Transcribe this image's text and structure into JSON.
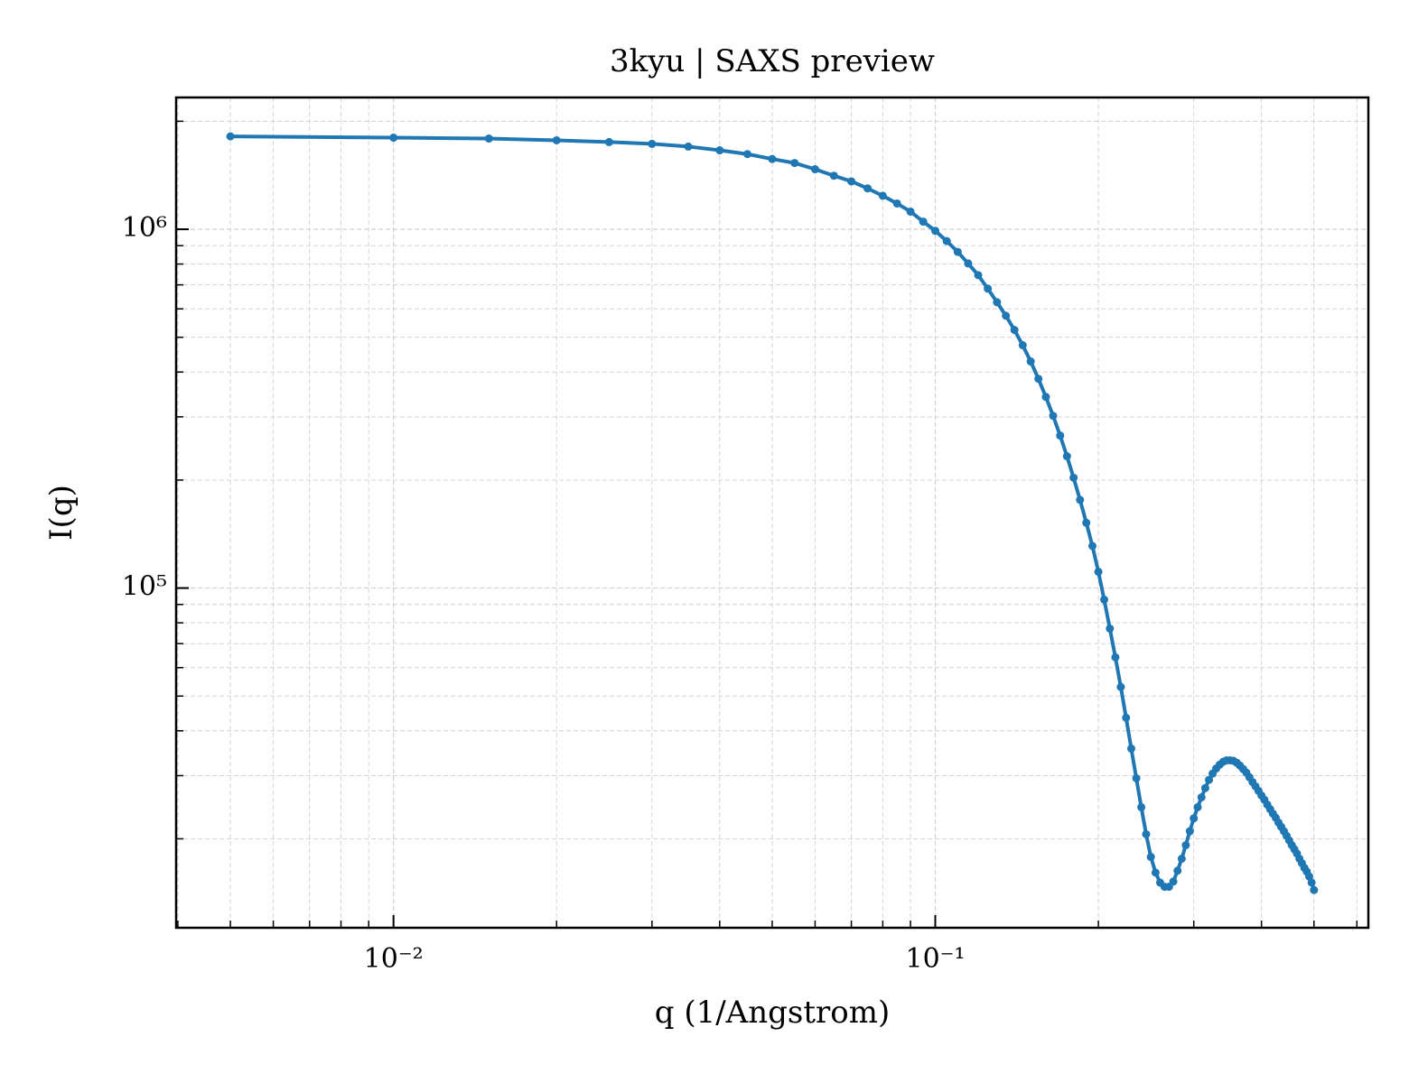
{
  "chart_data": {
    "type": "line",
    "title": "3kyu | SAXS preview",
    "x_label": "q (1/Angstrom)",
    "y_label": "I(q)",
    "x_scale": "log",
    "y_scale": "log",
    "grid": true,
    "minor_grid": true,
    "xlim": [
      0.00397,
      0.63
    ],
    "ylim": [
      11300,
      2330000
    ],
    "xticks": [
      {
        "value": 0.01,
        "label": "10⁻²"
      },
      {
        "value": 0.1,
        "label": "10⁻¹"
      }
    ],
    "yticks": [
      {
        "value": 100000,
        "label": "10⁵"
      },
      {
        "value": 1000000,
        "label": "10⁶"
      }
    ],
    "xminorticks": [
      0.004,
      0.005,
      0.006,
      0.007,
      0.008,
      0.009,
      0.02,
      0.03,
      0.04,
      0.05,
      0.06,
      0.07,
      0.08,
      0.09,
      0.2,
      0.3,
      0.4,
      0.5,
      0.6
    ],
    "yminorticks": [
      20000,
      30000,
      40000,
      50000,
      60000,
      70000,
      80000,
      90000,
      200000,
      300000,
      400000,
      500000,
      600000,
      700000,
      800000,
      900000,
      2000000
    ],
    "x": [
      0.005,
      0.01,
      0.015,
      0.02,
      0.025,
      0.03,
      0.035,
      0.04,
      0.045,
      0.05,
      0.055,
      0.06,
      0.065,
      0.07,
      0.075,
      0.08,
      0.085,
      0.09,
      0.095,
      0.1,
      0.105,
      0.11,
      0.115,
      0.12,
      0.125,
      0.13,
      0.135,
      0.14,
      0.145,
      0.15,
      0.155,
      0.16,
      0.165,
      0.17,
      0.175,
      0.18,
      0.185,
      0.19,
      0.195,
      0.2,
      0.205,
      0.21,
      0.215,
      0.22,
      0.225,
      0.23,
      0.235,
      0.24,
      0.245,
      0.25,
      0.255,
      0.26,
      0.265,
      0.27,
      0.275,
      0.28,
      0.285,
      0.29,
      0.295,
      0.3,
      0.305,
      0.31,
      0.315,
      0.32,
      0.325,
      0.33,
      0.335,
      0.34,
      0.345,
      0.35,
      0.355,
      0.36,
      0.365,
      0.37,
      0.375,
      0.38,
      0.385,
      0.39,
      0.395,
      0.4,
      0.405,
      0.41,
      0.415,
      0.42,
      0.425,
      0.43,
      0.435,
      0.44,
      0.445,
      0.45,
      0.455,
      0.46,
      0.465,
      0.47,
      0.475,
      0.48,
      0.485,
      0.49,
      0.495,
      0.5
    ],
    "series": [
      {
        "name": "I(q)",
        "color": "#1f77b4",
        "values": [
          1815000,
          1800000,
          1790000,
          1770000,
          1750000,
          1730000,
          1700000,
          1660000,
          1620000,
          1570000,
          1530000,
          1470000,
          1410000,
          1360000,
          1300000,
          1240000,
          1180000,
          1120000,
          1050000,
          990000,
          927000,
          865000,
          803000,
          745000,
          683000,
          626000,
          574000,
          524000,
          475000,
          428000,
          383000,
          341000,
          302000,
          266000,
          233000,
          203000,
          176000,
          152000,
          131000,
          111000,
          92800,
          77100,
          64100,
          53000,
          43500,
          35700,
          29500,
          24500,
          20600,
          17800,
          16100,
          15100,
          14700,
          14700,
          15200,
          16300,
          17600,
          19200,
          21000,
          22800,
          24500,
          26100,
          27700,
          29200,
          30400,
          31400,
          32200,
          32800,
          33100,
          33100,
          33000,
          32600,
          32000,
          31300,
          30600,
          29700,
          28800,
          28000,
          27200,
          26400,
          25700,
          24900,
          24200,
          23500,
          22900,
          22200,
          21600,
          21000,
          20400,
          19800,
          19200,
          18700,
          18200,
          17600,
          17100,
          16600,
          16200,
          15700,
          15100,
          14400
        ]
      }
    ]
  }
}
